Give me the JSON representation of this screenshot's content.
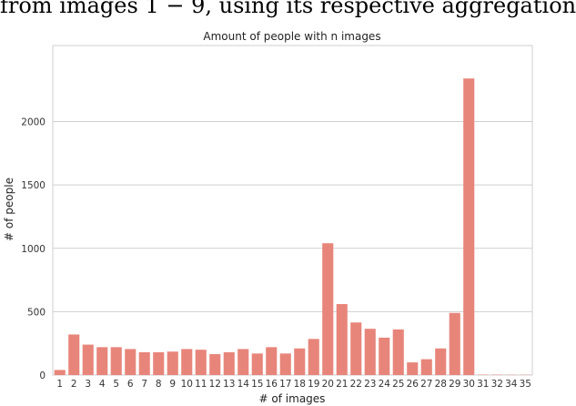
{
  "caption_fragment": "from images 1 − 9, using its respective aggregation",
  "chart_data": {
    "type": "bar",
    "title": "Amount of people with n images",
    "xlabel": "# of images",
    "ylabel": "# of people",
    "categories": [
      "1",
      "2",
      "3",
      "4",
      "5",
      "6",
      "7",
      "8",
      "9",
      "10",
      "11",
      "12",
      "13",
      "14",
      "15",
      "16",
      "17",
      "18",
      "19",
      "20",
      "21",
      "22",
      "23",
      "24",
      "25",
      "26",
      "27",
      "28",
      "29",
      "30",
      "31",
      "32",
      "34",
      "35"
    ],
    "values": [
      40,
      320,
      240,
      220,
      220,
      205,
      180,
      180,
      185,
      205,
      200,
      165,
      180,
      205,
      170,
      220,
      170,
      210,
      285,
      1040,
      560,
      415,
      365,
      295,
      360,
      100,
      125,
      210,
      490,
      2340,
      3,
      3,
      2,
      2
    ],
    "ylim": [
      0,
      2600
    ],
    "yticks": [
      0,
      500,
      1000,
      1500,
      2000
    ],
    "grid": true,
    "bar_color": "#e8857a"
  }
}
